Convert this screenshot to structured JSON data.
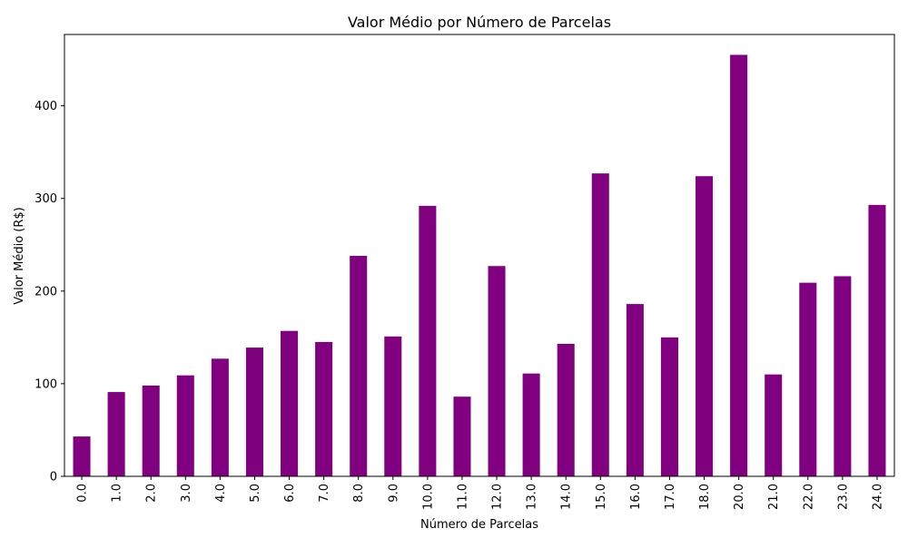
{
  "chart_data": {
    "type": "bar",
    "title": "Valor Médio por Número de Parcelas",
    "xlabel": "Número de Parcelas",
    "ylabel": "Valor Médio (R$)",
    "categories": [
      "0.0",
      "1.0",
      "2.0",
      "3.0",
      "4.0",
      "5.0",
      "6.0",
      "7.0",
      "8.0",
      "9.0",
      "10.0",
      "11.0",
      "12.0",
      "13.0",
      "14.0",
      "15.0",
      "16.0",
      "17.0",
      "18.0",
      "20.0",
      "21.0",
      "22.0",
      "23.0",
      "24.0"
    ],
    "values": [
      43,
      91,
      98,
      109,
      127,
      139,
      157,
      145,
      238,
      151,
      292,
      86,
      227,
      111,
      143,
      327,
      186,
      150,
      324,
      455,
      110,
      209,
      216,
      293
    ],
    "ylim": [
      0,
      477
    ],
    "yticks": [
      0,
      100,
      200,
      300,
      400
    ],
    "ytick_labels": [
      "0",
      "100",
      "200",
      "300",
      "400"
    ],
    "bar_color": "#800080",
    "grid": false,
    "legend": "none"
  }
}
